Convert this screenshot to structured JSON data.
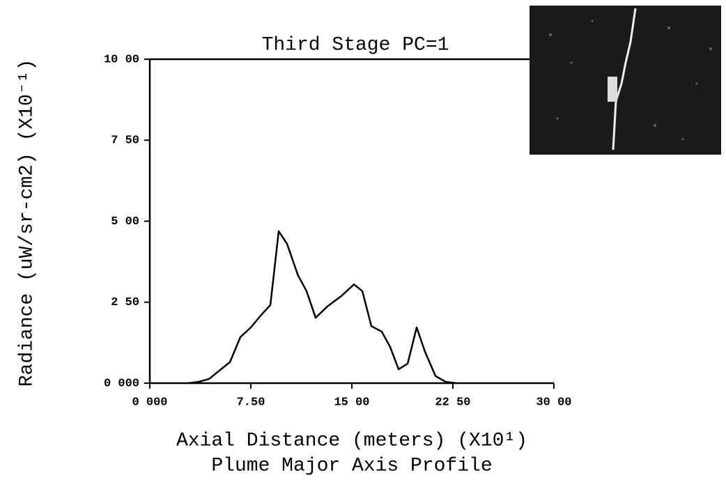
{
  "chart_data": {
    "type": "line",
    "title": "Third Stage PC=1",
    "subtitle": "Plume Major Axis Profile",
    "x_label": "Axial Distance (meters) (X10¹)",
    "y_label": "Radiance (uW/sr-cm2) (X10⁻¹)",
    "x": [
      2.84,
      3.62,
      4.4,
      5.17,
      5.95,
      6.72,
      7.5,
      8.28,
      8.95,
      9.57,
      10.19,
      11.0,
      11.64,
      12.31,
      13.19,
      14.22,
      15.16,
      15.78,
      16.45,
      17.22,
      17.84,
      18.47,
      19.14,
      19.81,
      20.43,
      21.21,
      21.98,
      22.76
    ],
    "series": [
      {
        "color": "#000000",
        "values": [
          0,
          0.04,
          0.13,
          0.39,
          0.65,
          1.42,
          1.72,
          2.11,
          2.41,
          4.69,
          4.3,
          3.33,
          2.84,
          2.02,
          2.37,
          2.69,
          3.05,
          2.84,
          1.76,
          1.59,
          1.12,
          0.43,
          0.6,
          1.72,
          0.97,
          0.22,
          0.04,
          0
        ]
      }
    ],
    "xlim": [
      0,
      30
    ],
    "ylim": [
      0,
      10
    ],
    "xticks": [
      {
        "value": 0,
        "label": "0 000"
      },
      {
        "value": 7.5,
        "label": "7.50"
      },
      {
        "value": 15,
        "label": "15 00"
      },
      {
        "value": 22.5,
        "label": "22 50"
      },
      {
        "value": 30,
        "label": "30 00"
      }
    ],
    "yticks": [
      {
        "value": 0,
        "label": "0 000"
      },
      {
        "value": 2.5,
        "label": "2 50"
      },
      {
        "value": 5,
        "label": "5 00"
      },
      {
        "value": 7.5,
        "label": "7 50"
      },
      {
        "value": 10,
        "label": "10 00"
      }
    ],
    "grid": false
  }
}
